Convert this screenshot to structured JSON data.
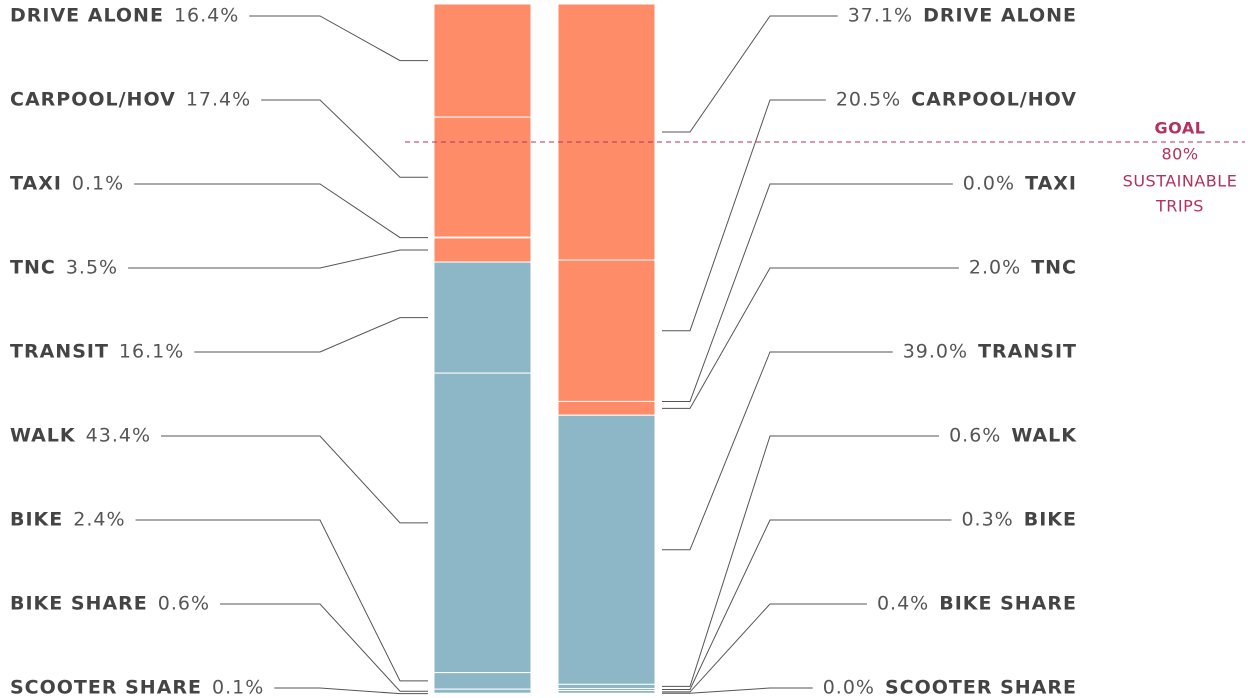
{
  "chart_data": {
    "type": "stacked-column-pair",
    "categories": [
      "DRIVE ALONE",
      "CARPOOL/HOV",
      "TAXI",
      "TNC",
      "TRANSIT",
      "WALK",
      "BIKE",
      "BIKE SHARE",
      "SCOOTER SHARE"
    ],
    "colors": [
      "#ff8c69",
      "#ff8c69",
      "#ff8c69",
      "#ff8c69",
      "#8db6c7",
      "#8db6c7",
      "#8db6c7",
      "#8db6c7",
      "#8db6c7"
    ],
    "series": [
      {
        "values": [
          16.4,
          17.4,
          0.1,
          3.5,
          16.1,
          43.4,
          2.4,
          0.6,
          0.1
        ],
        "value_labels": [
          "16.4%",
          "17.4%",
          "0.1%",
          "3.5%",
          "16.1%",
          "43.4%",
          "2.4%",
          "0.6%",
          "0.1%"
        ]
      },
      {
        "values": [
          37.1,
          20.5,
          0.0,
          2.0,
          39.0,
          0.6,
          0.3,
          0.4,
          0.0
        ],
        "value_labels": [
          "37.1%",
          "20.5%",
          "0.0%",
          "2.0%",
          "39.0%",
          "0.6%",
          "0.3%",
          "0.4%",
          "0.0%"
        ]
      }
    ],
    "ylim": [
      0,
      100
    ],
    "goal": {
      "label": "GOAL",
      "value": 80,
      "value_label": "80%",
      "text": [
        "SUSTAINABLE",
        "TRIPS"
      ],
      "color": "#b5305a"
    }
  }
}
